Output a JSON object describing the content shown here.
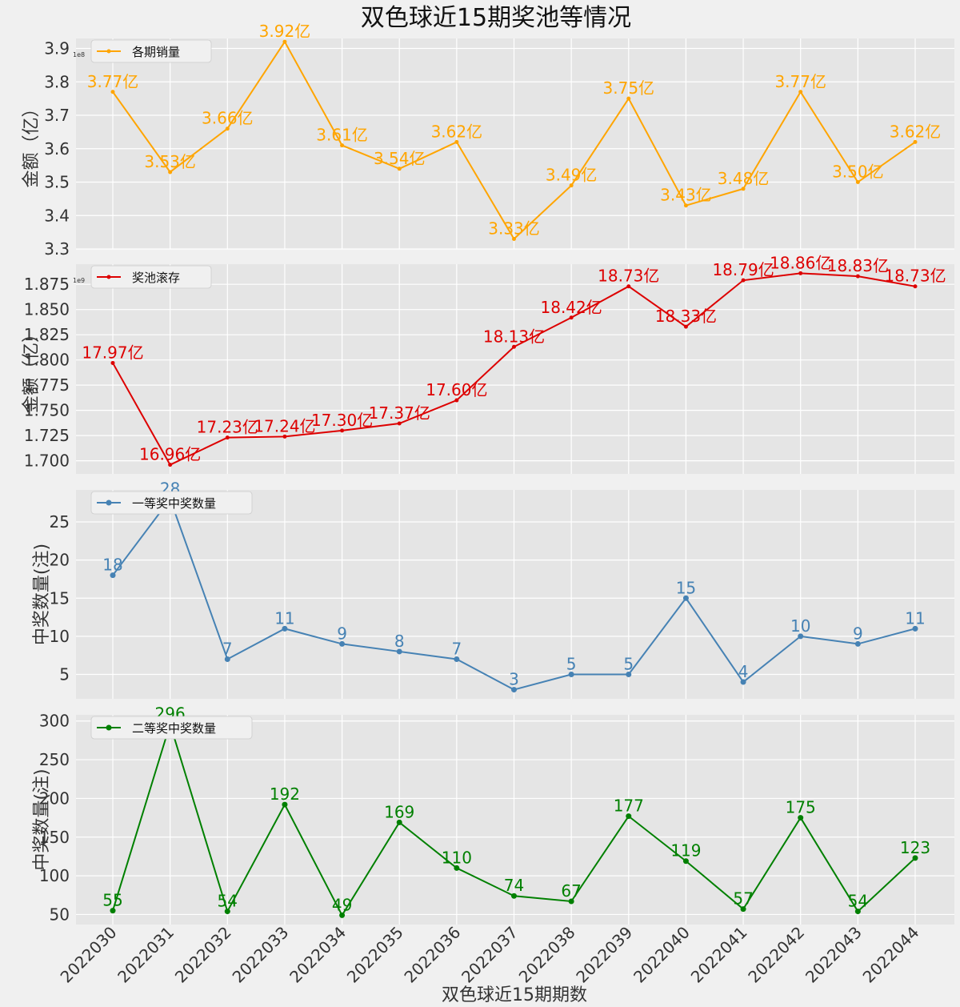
{
  "title": "双色球近15期奖池等情况",
  "xlabel": "双色球近15期期数",
  "chart_data": {
    "type": "line",
    "categories": [
      "2022030",
      "2022031",
      "2022032",
      "2022033",
      "2022034",
      "2022035",
      "2022036",
      "2022037",
      "2022038",
      "2022039",
      "2022040",
      "2022041",
      "2022042",
      "2022043",
      "2022044"
    ],
    "panels": [
      {
        "name": "各期销量",
        "ylabel": "金额（亿）",
        "color": "#ffa500",
        "exponent": "1e8",
        "ylim": [
          3.3,
          3.93
        ],
        "yticks": [
          "3.3",
          "3.4",
          "3.5",
          "3.6",
          "3.7",
          "3.8",
          "3.9"
        ],
        "values": [
          3.77,
          3.53,
          3.66,
          3.92,
          3.61,
          3.54,
          3.62,
          3.33,
          3.49,
          3.75,
          3.43,
          3.48,
          3.77,
          3.5,
          3.62
        ],
        "labels": [
          "3.77亿",
          "3.53亿",
          "3.66亿",
          "3.92亿",
          "3.61亿",
          "3.54亿",
          "3.62亿",
          "3.33亿",
          "3.49亿",
          "3.75亿",
          "3.43亿",
          "3.48亿",
          "3.77亿",
          "3.50亿",
          "3.62亿"
        ],
        "marker": "small"
      },
      {
        "name": "奖池滚存",
        "ylabel": "金额（亿）",
        "color": "#dd0000",
        "exponent": "1e9",
        "ylim": [
          1.687,
          1.895
        ],
        "yticks": [
          "1.700",
          "1.725",
          "1.750",
          "1.775",
          "1.800",
          "1.825",
          "1.850",
          "1.875"
        ],
        "values": [
          1.797,
          1.696,
          1.723,
          1.724,
          1.73,
          1.737,
          1.76,
          1.813,
          1.842,
          1.873,
          1.833,
          1.879,
          1.886,
          1.883,
          1.873
        ],
        "labels": [
          "17.97亿",
          "16.96亿",
          "17.23亿",
          "17.24亿",
          "17.30亿",
          "17.37亿",
          "17.60亿",
          "18.13亿",
          "18.42亿",
          "18.73亿",
          "18.33亿",
          "18.79亿",
          "18.86亿",
          "18.83亿",
          "18.73亿"
        ],
        "marker": "small"
      },
      {
        "name": "一等奖中奖数量",
        "ylabel": "中奖数量(注)",
        "color": "#4682b4",
        "ylim": [
          1.8,
          29.2
        ],
        "yticks": [
          "5",
          "10",
          "15",
          "20",
          "25"
        ],
        "values": [
          18,
          28,
          7,
          11,
          9,
          8,
          7,
          3,
          5,
          5,
          15,
          4,
          10,
          9,
          11
        ],
        "labels": [
          "18",
          "28",
          "7",
          "11",
          "9",
          "8",
          "7",
          "3",
          "5",
          "5",
          "15",
          "4",
          "10",
          "9",
          "11"
        ],
        "marker": "big"
      },
      {
        "name": "二等奖中奖数量",
        "ylabel": "中奖数量(注)",
        "color": "#008000",
        "ylim": [
          37,
          308
        ],
        "yticks": [
          "50",
          "100",
          "150",
          "200",
          "250",
          "300"
        ],
        "values": [
          55,
          296,
          54,
          192,
          49,
          169,
          110,
          74,
          67,
          177,
          119,
          57,
          175,
          54,
          123
        ],
        "labels": [
          "55",
          "296",
          "54",
          "192",
          "49",
          "169",
          "110",
          "74",
          "67",
          "177",
          "119",
          "57",
          "175",
          "54",
          "123"
        ],
        "marker": "big"
      }
    ]
  }
}
